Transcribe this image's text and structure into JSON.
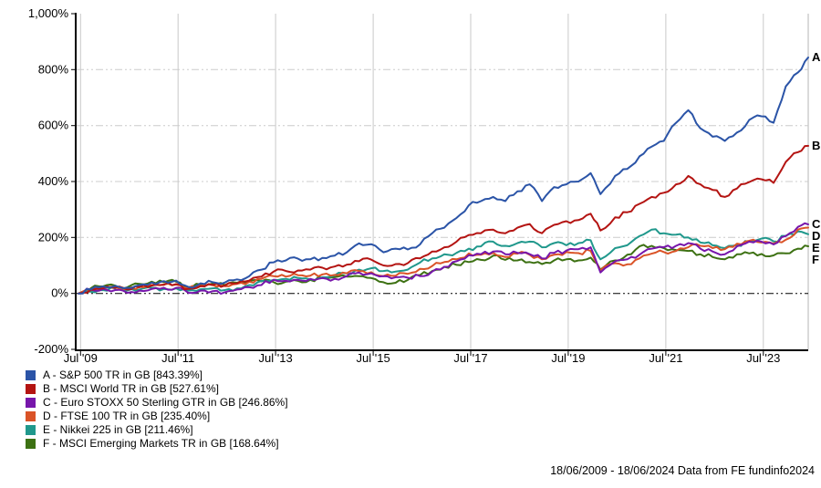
{
  "footer": {
    "text": "18/06/2009 - 18/06/2024 Data from FE fundinfo2024"
  },
  "palette": {
    "axis": "#000000",
    "vgrid": "#c9c9c9",
    "hgrid": "#cccccc",
    "plot_border": "#b4b4b4",
    "background": "#ffffff",
    "label_text": "#000000"
  },
  "chart_data": {
    "type": "line",
    "title": "",
    "xlabel": "",
    "ylabel": "",
    "grid": true,
    "legend_position": "bottom-left",
    "xlim": [
      2009.46,
      2024.46
    ],
    "ylim": [
      -200,
      1000
    ],
    "y_ticks": [
      -200,
      0,
      200,
      400,
      600,
      800,
      1000
    ],
    "y_tick_labels": [
      "-200%",
      "0%",
      "200%",
      "400%",
      "600%",
      "800%",
      "1,000%"
    ],
    "h_gridlines_at": [
      200,
      400,
      600,
      800
    ],
    "zero_line_at": 0,
    "x_ticks": [
      2009.54,
      2011.54,
      2013.54,
      2015.54,
      2017.54,
      2019.54,
      2021.54,
      2023.54
    ],
    "x_tick_labels": [
      "Jul '09",
      "Jul '11",
      "Jul '13",
      "Jul '15",
      "Jul '17",
      "Jul '19",
      "Jul '21",
      "Jul '23"
    ],
    "x": [
      2009.5,
      2009.75,
      2010,
      2010.25,
      2010.5,
      2010.75,
      2011,
      2011.25,
      2011.5,
      2011.75,
      2012,
      2012.25,
      2012.5,
      2012.75,
      2013,
      2013.25,
      2013.5,
      2013.75,
      2014,
      2014.25,
      2014.5,
      2014.75,
      2015,
      2015.25,
      2015.5,
      2015.75,
      2016,
      2016.25,
      2016.5,
      2016.75,
      2017,
      2017.25,
      2017.5,
      2017.75,
      2018,
      2018.25,
      2018.5,
      2018.75,
      2019,
      2019.25,
      2019.5,
      2019.75,
      2020,
      2020.2,
      2020.5,
      2020.75,
      2021,
      2021.25,
      2021.5,
      2021.75,
      2022,
      2022.25,
      2022.5,
      2022.75,
      2023,
      2023.25,
      2023.5,
      2023.75,
      2024,
      2024.25,
      2024.46
    ],
    "series": [
      {
        "letter": "A",
        "name": "S&P 500 TR in GB",
        "final_value": "843.39%",
        "color": "#2b54a7",
        "values": [
          0,
          14,
          25,
          27,
          20,
          30,
          39,
          44,
          46,
          23,
          36,
          40,
          39,
          50,
          62,
          85,
          111,
          118,
          124,
          122,
          127,
          135,
          147,
          179,
          176,
          147,
          160,
          157,
          175,
          215,
          235,
          270,
          315,
          330,
          345,
          330,
          365,
          390,
          330,
          380,
          390,
          400,
          430,
          355,
          420,
          445,
          490,
          525,
          545,
          610,
          655,
          590,
          560,
          545,
          575,
          620,
          633,
          610,
          740,
          790,
          843.39
        ]
      },
      {
        "letter": "B",
        "name": "MSCI World TR in GB",
        "final_value": "527.61%",
        "color": "#b41412",
        "values": [
          0,
          12,
          18,
          20,
          14,
          22,
          28,
          31,
          33,
          16,
          26,
          30,
          28,
          36,
          46,
          60,
          78,
          80,
          82,
          85,
          92,
          96,
          103,
          115,
          121,
          100,
          105,
          108,
          125,
          150,
          165,
          185,
          209,
          215,
          228,
          215,
          235,
          248,
          215,
          245,
          258,
          262,
          285,
          225,
          272,
          290,
          320,
          345,
          360,
          390,
          420,
          390,
          370,
          345,
          375,
          398,
          408,
          395,
          470,
          505,
          527.61
        ]
      },
      {
        "letter": "C",
        "name": "Euro STOXX 50 Sterling GTR in GB",
        "final_value": "246.86%",
        "color": "#7716ab",
        "values": [
          0,
          14,
          16,
          12,
          2,
          10,
          16,
          20,
          20,
          2,
          10,
          8,
          4,
          14,
          22,
          30,
          49,
          45,
          48,
          52,
          55,
          52,
          62,
          75,
          72,
          62,
          58,
          56,
          62,
          78,
          95,
          115,
          137,
          140,
          150,
          140,
          145,
          140,
          125,
          145,
          153,
          158,
          165,
          75,
          115,
          122,
          138,
          160,
          165,
          170,
          180,
          160,
          150,
          140,
          168,
          185,
          185,
          175,
          205,
          238,
          246.86
        ]
      },
      {
        "letter": "D",
        "name": "FTSE 100 TR in GB",
        "final_value": "235.40%",
        "color": "#da5327",
        "values": [
          0,
          14,
          20,
          24,
          14,
          24,
          30,
          32,
          32,
          18,
          28,
          30,
          26,
          34,
          42,
          52,
          62,
          60,
          65,
          63,
          68,
          66,
          72,
          80,
          76,
          62,
          63,
          70,
          88,
          98,
          112,
          122,
          143,
          138,
          145,
          130,
          142,
          138,
          122,
          138,
          148,
          144,
          152,
          82,
          108,
          104,
          125,
          142,
          148,
          152,
          165,
          170,
          162,
          158,
          178,
          188,
          182,
          178,
          192,
          228,
          235.4
        ]
      },
      {
        "letter": "E",
        "name": "Nikkei 225 in GB",
        "final_value": "211.46%",
        "color": "#20988c",
        "values": [
          0,
          6,
          12,
          18,
          10,
          14,
          20,
          16,
          18,
          10,
          15,
          18,
          12,
          18,
          30,
          45,
          48,
          52,
          55,
          50,
          58,
          64,
          72,
          85,
          90,
          80,
          78,
          85,
          110,
          125,
          140,
          145,
          160,
          168,
          185,
          170,
          180,
          185,
          165,
          180,
          172,
          180,
          190,
          122,
          162,
          172,
          205,
          228,
          215,
          210,
          200,
          182,
          172,
          162,
          172,
          185,
          196,
          186,
          206,
          222,
          211.46
        ]
      },
      {
        "letter": "F",
        "name": "MSCI Emerging Markets TR in GB",
        "final_value": "168.64%",
        "color": "#3d7113",
        "values": [
          0,
          18,
          25,
          28,
          22,
          34,
          42,
          40,
          42,
          22,
          32,
          35,
          30,
          38,
          45,
          43,
          40,
          42,
          45,
          48,
          55,
          58,
          60,
          62,
          55,
          40,
          38,
          48,
          65,
          80,
          95,
          102,
          112,
          120,
          135,
          120,
          118,
          112,
          105,
          118,
          122,
          118,
          128,
          85,
          118,
          138,
          168,
          170,
          162,
          155,
          152,
          140,
          130,
          122,
          140,
          143,
          141,
          136,
          143,
          160,
          168.64
        ]
      }
    ]
  }
}
